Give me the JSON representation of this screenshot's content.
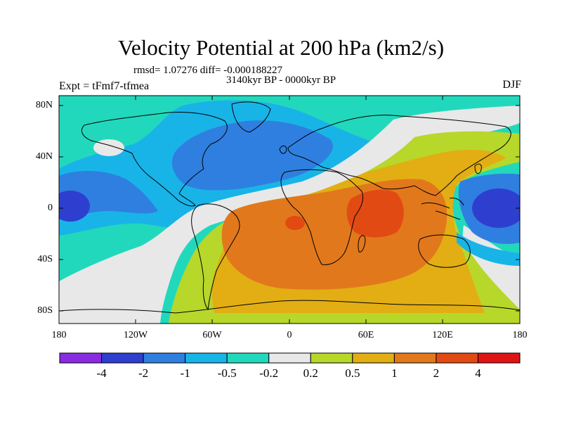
{
  "title": "Velocity Potential at 200 hPa (km2/s)",
  "stats": "rmsd= 1.07276 diff= -0.000188227",
  "period": "3140kyr BP - 0000kyr BP",
  "experiment": "Expt = tFmf7-tfmea",
  "season": "DJF",
  "y_axis_labels": [
    "80N",
    "40N",
    "0",
    "40S",
    "80S"
  ],
  "x_axis_labels": [
    "180",
    "120W",
    "60W",
    "0",
    "60E",
    "120E",
    "180"
  ],
  "colorbar": {
    "labels": [
      "-4",
      "-2",
      "-1",
      "-0.5",
      "-0.2",
      "0.2",
      "0.5",
      "1",
      "2",
      "4"
    ],
    "colors": [
      "#8a2be2",
      "#2e3fd0",
      "#2f7fe0",
      "#18b4e8",
      "#22d8bc",
      "#e8e8e8",
      "#b7d72a",
      "#e2ae14",
      "#e2781c",
      "#e24a14",
      "#e01414"
    ]
  },
  "map_colors": {
    "land_outline": "#000000",
    "frame": "#000000"
  }
}
